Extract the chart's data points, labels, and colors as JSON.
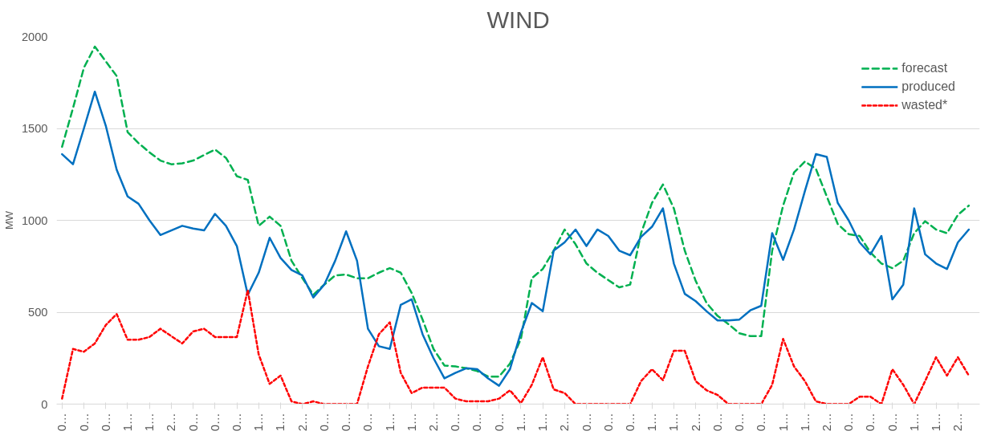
{
  "chart_data": {
    "type": "line",
    "title": "WIND",
    "ylabel": "MW",
    "categories": [
      "0…",
      null,
      "0…",
      null,
      "0…",
      null,
      "1…",
      null,
      "1…",
      null,
      "2…",
      null,
      "0…",
      null,
      "0…",
      null,
      "0…",
      null,
      "1…",
      null,
      "1…",
      null,
      "2…",
      null,
      "0…",
      null,
      "0…",
      null,
      "0…",
      null,
      "1…",
      null,
      "1…",
      null,
      "2…",
      null,
      "0…",
      null,
      "0…",
      null,
      "0…",
      null,
      "1…",
      null,
      "1…",
      null,
      "2…",
      null,
      "0…",
      null,
      "0…",
      null,
      "0…",
      null,
      "1…",
      null,
      "1…",
      null,
      "2…",
      null,
      "0…",
      null,
      "0…",
      null,
      "0…",
      null,
      "1…",
      null,
      "1…",
      null,
      "2…",
      null,
      "0…",
      null,
      "0…",
      null,
      "0…",
      null,
      "1…",
      null,
      "1…",
      null,
      "2…",
      null
    ],
    "series": [
      {
        "name": "forecast",
        "color": "#00b050",
        "line_style": "dashed",
        "values": [
          1400,
          1610,
          1830,
          1945,
          1865,
          1785,
          1480,
          1420,
          1370,
          1325,
          1305,
          1310,
          1325,
          1355,
          1385,
          1340,
          1240,
          1220,
          970,
          1020,
          970,
          780,
          685,
          595,
          650,
          700,
          705,
          685,
          685,
          715,
          740,
          715,
          605,
          460,
          300,
          210,
          205,
          195,
          180,
          150,
          150,
          220,
          355,
          685,
          735,
          835,
          950,
          870,
          765,
          715,
          675,
          635,
          650,
          930,
          1095,
          1195,
          1065,
          835,
          670,
          550,
          480,
          435,
          385,
          370,
          370,
          835,
          1080,
          1260,
          1320,
          1280,
          1130,
          980,
          925,
          915,
          825,
          765,
          740,
          780,
          930,
          995,
          950,
          930,
          1030,
          1080
        ]
      },
      {
        "name": "produced",
        "color": "#0070c0",
        "line_style": "solid",
        "values": [
          1360,
          1305,
          1500,
          1700,
          1515,
          1275,
          1130,
          1090,
          1000,
          920,
          945,
          970,
          955,
          945,
          1035,
          970,
          860,
          595,
          715,
          905,
          795,
          730,
          700,
          580,
          650,
          780,
          940,
          780,
          410,
          315,
          300,
          540,
          570,
          380,
          250,
          140,
          170,
          195,
          190,
          140,
          100,
          190,
          390,
          550,
          505,
          835,
          880,
          950,
          860,
          950,
          915,
          835,
          810,
          910,
          965,
          1065,
          765,
          600,
          560,
          505,
          455,
          455,
          460,
          510,
          535,
          930,
          785,
          950,
          1160,
          1360,
          1345,
          1095,
          1000,
          880,
          815,
          915,
          570,
          650,
          1065,
          815,
          765,
          735,
          880,
          950
        ]
      },
      {
        "name": "wasted*",
        "color": "#ff0000",
        "line_style": "dotted",
        "values": [
          30,
          300,
          285,
          330,
          430,
          490,
          350,
          350,
          365,
          410,
          370,
          330,
          395,
          410,
          365,
          365,
          365,
          620,
          270,
          110,
          155,
          15,
          0,
          15,
          0,
          0,
          0,
          0,
          205,
          380,
          445,
          170,
          60,
          90,
          90,
          90,
          30,
          15,
          15,
          15,
          30,
          75,
          5,
          105,
          255,
          80,
          60,
          0,
          0,
          0,
          0,
          0,
          0,
          125,
          190,
          130,
          290,
          290,
          125,
          75,
          50,
          0,
          0,
          0,
          0,
          105,
          355,
          205,
          125,
          15,
          0,
          0,
          0,
          40,
          40,
          0,
          190,
          105,
          0,
          125,
          255,
          155,
          255,
          155
        ]
      }
    ],
    "ylim": [
      0,
      2000
    ],
    "yticks": [
      0,
      500,
      1000,
      1500,
      2000
    ],
    "grid": "y",
    "legend": "top right"
  }
}
